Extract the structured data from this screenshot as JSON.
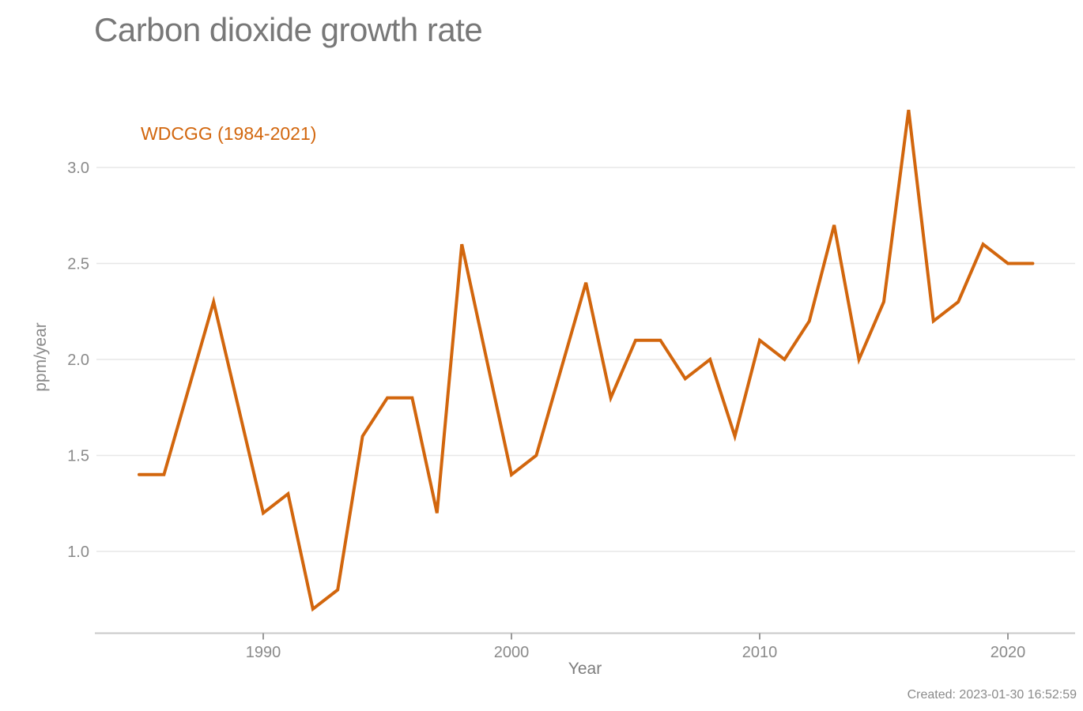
{
  "page": {
    "title": "Carbon dioxide growth rate",
    "created_note": "Created: 2023-01-30 16:52:59"
  },
  "legend": {
    "label": "WDCGG (1984-2021)"
  },
  "colors": {
    "line": "#d2660d",
    "legend_text": "#d2660d",
    "title_text": "#787878",
    "axis_text": "#8a8a8a",
    "gridline": "#e7e7e7",
    "axis_line": "#c8c8c8",
    "tick_mark": "#999999",
    "background": "#ffffff"
  },
  "chart_data": {
    "type": "line",
    "title": "Carbon dioxide growth rate",
    "xlabel": "Year",
    "ylabel": "ppm/year",
    "note": "Created: 2023-01-30 16:52:59",
    "grid": "horizontal",
    "legend_position": "top-left",
    "xlim": [
      1983.2,
      2022.7
    ],
    "ylim": [
      0.58,
      3.42
    ],
    "x_ticks": [
      1990,
      2000,
      2010,
      2020
    ],
    "x_tick_labels": [
      "1990",
      "2000",
      "2010",
      "2020"
    ],
    "y_ticks": [
      1.0,
      1.5,
      2.0,
      2.5,
      3.0
    ],
    "y_tick_labels": [
      "1.0",
      "1.5",
      "2.0",
      "2.5",
      "3.0"
    ],
    "series": [
      {
        "name": "WDCGG (1984-2021)",
        "color": "#d2660d",
        "x": [
          1985,
          1986,
          1988,
          1990,
          1991,
          1992,
          1993,
          1994,
          1995,
          1996,
          1997,
          1998,
          1999,
          2000,
          2001,
          2003,
          2004,
          2005,
          2006,
          2007,
          2008,
          2009,
          2010,
          2011,
          2012,
          2013,
          2014,
          2015,
          2016,
          2017,
          2018,
          2019,
          2020,
          2021
        ],
        "values": [
          1.4,
          1.4,
          2.3,
          1.2,
          1.3,
          0.7,
          0.8,
          1.6,
          1.8,
          1.8,
          1.2,
          2.6,
          2.0,
          1.4,
          1.5,
          2.4,
          1.8,
          2.1,
          2.1,
          1.9,
          2.0,
          1.6,
          2.1,
          2.0,
          2.2,
          2.7,
          2.0,
          2.3,
          3.3,
          2.2,
          2.3,
          2.6,
          2.5,
          2.5
        ]
      }
    ]
  }
}
